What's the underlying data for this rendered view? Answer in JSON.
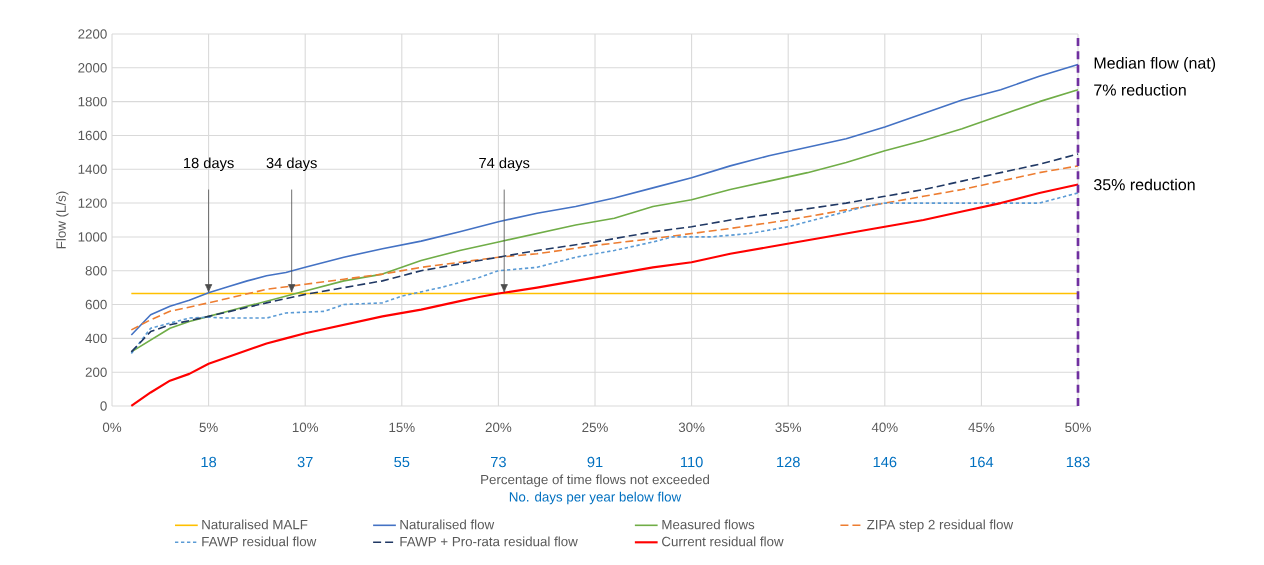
{
  "chart_data": {
    "type": "line",
    "xlabel": "Percentage of time flows not exceeded",
    "ylabel": "Flow (L/s)",
    "x2label": "No. days per year below flow",
    "xlim": [
      0,
      50
    ],
    "ylim": [
      0,
      2200
    ],
    "xticks": [
      {
        "value": 0,
        "label": "0%"
      },
      {
        "value": 5,
        "label": "5%"
      },
      {
        "value": 10,
        "label": "10%"
      },
      {
        "value": 15,
        "label": "15%"
      },
      {
        "value": 20,
        "label": "20%"
      },
      {
        "value": 25,
        "label": "25%"
      },
      {
        "value": 30,
        "label": "30%"
      },
      {
        "value": 35,
        "label": "35%"
      },
      {
        "value": 40,
        "label": "40%"
      },
      {
        "value": 45,
        "label": "45%"
      },
      {
        "value": 50,
        "label": "50%"
      }
    ],
    "yticks": [
      0,
      200,
      400,
      600,
      800,
      1000,
      1200,
      1400,
      1600,
      1800,
      2000,
      2200
    ],
    "x2lim": [
      0,
      182.5
    ],
    "x2ticks": [
      {
        "value": 18.25,
        "label": "18"
      },
      {
        "value": 36.5,
        "label": "37"
      },
      {
        "value": 54.75,
        "label": "55"
      },
      {
        "value": 73,
        "label": "73"
      },
      {
        "value": 91.25,
        "label": "91"
      },
      {
        "value": 109.5,
        "label": "110"
      },
      {
        "value": 127.75,
        "label": "128"
      },
      {
        "value": 146,
        "label": "146"
      },
      {
        "value": 164.25,
        "label": "164"
      },
      {
        "value": 182.5,
        "label": "183"
      }
    ],
    "grid": true,
    "legend": "bottom",
    "series": [
      {
        "name": "Naturalised MALF",
        "color": "#ffc000",
        "line_style": "solid",
        "x": [
          1,
          50
        ],
        "values": [
          665,
          665
        ]
      },
      {
        "name": "Naturalised flow",
        "color": "#4472c4",
        "line_style": "solid",
        "x": [
          1,
          2,
          3,
          4,
          5,
          6,
          7,
          8,
          9,
          10,
          12,
          14,
          16,
          18,
          20,
          22,
          24,
          26,
          28,
          30,
          32,
          34,
          36,
          38,
          40,
          42,
          44,
          46,
          48,
          50
        ],
        "values": [
          420,
          540,
          590,
          625,
          670,
          705,
          740,
          770,
          790,
          820,
          880,
          930,
          975,
          1030,
          1090,
          1140,
          1180,
          1230,
          1290,
          1350,
          1420,
          1480,
          1530,
          1580,
          1650,
          1730,
          1810,
          1870,
          1950,
          2020
        ]
      },
      {
        "name": "Measured flows",
        "color": "#70ad47",
        "line_style": "solid",
        "x": [
          1,
          2,
          3,
          4,
          5,
          6,
          8,
          10,
          12,
          14,
          16,
          18,
          20,
          22,
          24,
          26,
          28,
          30,
          32,
          34,
          36,
          38,
          40,
          42,
          44,
          46,
          48,
          50
        ],
        "values": [
          320,
          390,
          460,
          500,
          530,
          560,
          620,
          680,
          740,
          780,
          860,
          920,
          970,
          1020,
          1070,
          1110,
          1180,
          1220,
          1280,
          1330,
          1380,
          1440,
          1510,
          1570,
          1640,
          1720,
          1800,
          1870
        ]
      },
      {
        "name": "ZIPA step 2 residual flow",
        "color": "#ed7d31",
        "line_style": "dashed",
        "x": [
          1,
          2,
          3,
          5,
          8,
          10,
          12,
          14,
          16,
          18,
          20,
          22,
          25,
          28,
          30,
          32,
          35,
          38,
          40,
          42,
          44,
          46,
          48,
          50
        ],
        "values": [
          450,
          510,
          560,
          610,
          690,
          720,
          750,
          780,
          820,
          850,
          880,
          900,
          950,
          990,
          1020,
          1050,
          1100,
          1160,
          1200,
          1240,
          1280,
          1330,
          1380,
          1420
        ]
      },
      {
        "name": "FAWP residual flow",
        "color": "#5b9bd5",
        "line_style": "dotted",
        "x": [
          1,
          2,
          3,
          4,
          5,
          6,
          8,
          9,
          11,
          12,
          14,
          15,
          17,
          19,
          20,
          22,
          24,
          26,
          28,
          29,
          31,
          33,
          35,
          37,
          39,
          40,
          44,
          48,
          50
        ],
        "values": [
          310,
          460,
          490,
          520,
          525,
          520,
          520,
          550,
          560,
          600,
          610,
          650,
          700,
          760,
          800,
          820,
          880,
          920,
          970,
          1000,
          1000,
          1020,
          1060,
          1120,
          1180,
          1200,
          1200,
          1200,
          1260
        ]
      },
      {
        "name": "FAWP + Pro-rata residual flow",
        "color": "#203864",
        "line_style": "dashed",
        "x": [
          1,
          2,
          3,
          5,
          8,
          10,
          12,
          14,
          16,
          18,
          20,
          22,
          25,
          28,
          30,
          32,
          35,
          38,
          40,
          42,
          44,
          46,
          48,
          50
        ],
        "values": [
          320,
          440,
          480,
          530,
          610,
          660,
          700,
          740,
          800,
          840,
          880,
          920,
          970,
          1030,
          1060,
          1100,
          1150,
          1200,
          1240,
          1280,
          1330,
          1380,
          1430,
          1490
        ]
      },
      {
        "name": "Current residual flow",
        "color": "#ff0000",
        "line_style": "solid",
        "x": [
          1,
          2,
          3,
          4,
          5,
          6,
          7,
          8,
          9,
          10,
          12,
          14,
          16,
          18,
          19,
          20,
          22,
          24,
          26,
          28,
          30,
          32,
          34,
          36,
          38,
          40,
          42,
          44,
          46,
          48,
          50
        ],
        "values": [
          0,
          80,
          150,
          190,
          250,
          290,
          330,
          370,
          400,
          430,
          480,
          530,
          570,
          620,
          645,
          665,
          700,
          740,
          780,
          820,
          850,
          900,
          940,
          980,
          1020,
          1060,
          1100,
          1150,
          1200,
          1260,
          1310
        ]
      }
    ],
    "ref_lines": [
      {
        "axis": "x",
        "value": 50,
        "color": "#7030a0",
        "line_style": "dashed"
      }
    ],
    "annotations": [
      {
        "text": "18 days",
        "x": 5,
        "y": 665
      },
      {
        "text": "34 days",
        "x": 9.3,
        "y": 665
      },
      {
        "text": "74 days",
        "x": 20.3,
        "y": 665
      },
      {
        "text": "Median flow (nat)",
        "x": 50,
        "y": 2020
      },
      {
        "text": "7% reduction",
        "x": 50,
        "y": 1870
      },
      {
        "text": "35% reduction",
        "x": 50,
        "y": 1310
      }
    ]
  }
}
